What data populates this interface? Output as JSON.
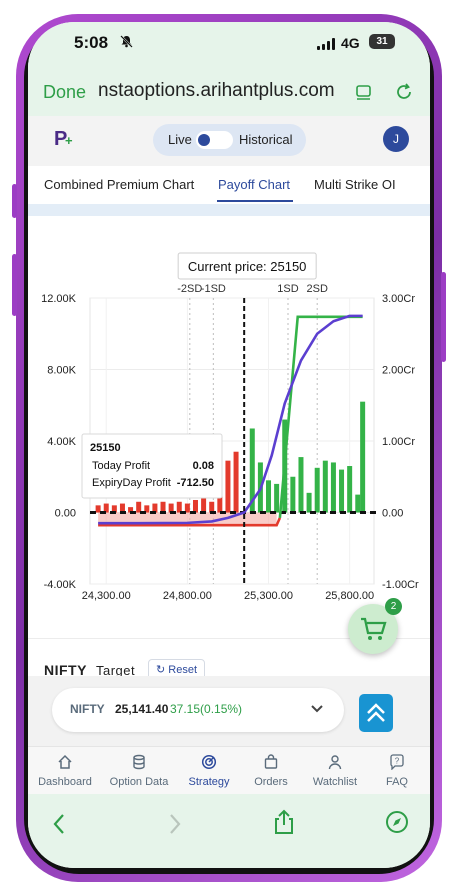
{
  "status": {
    "time": "5:08",
    "network": "4G",
    "battery": "31"
  },
  "browser": {
    "done_label": "Done",
    "url": "nstaoptions.arihantplus.com"
  },
  "app": {
    "logo_text": "P",
    "live_label": "Live",
    "historical_label": "Historical",
    "avatar_initial": "J",
    "tabs": [
      "Combined Premium Chart",
      "Payoff Chart",
      "Multi Strike OI"
    ],
    "active_tab": "Payoff Chart"
  },
  "chart_data": {
    "type": "line",
    "current_price_label": "Current price: 25150",
    "sd_labels": [
      "-2SD",
      "-1SD",
      "1SD",
      "2SD"
    ],
    "xlim": [
      24200,
      25950
    ],
    "x_ticks": [
      "24,300.00",
      "24,800.00",
      "25,300.00",
      "25,800.00"
    ],
    "x_tick_values": [
      24300,
      24800,
      25300,
      25800
    ],
    "y_left_ticks": [
      "12.00K",
      "8.00K",
      "4.00K",
      "0.00",
      "-4.00K"
    ],
    "y_left_values": [
      12000,
      8000,
      4000,
      0,
      -4000
    ],
    "y_right_ticks": [
      "3.00Cr",
      "2.00Cr",
      "1.00Cr",
      "0.00",
      "-1.00Cr"
    ],
    "ylim": [
      -4000,
      12000
    ],
    "current_price": 25150,
    "sd_values": [
      24815,
      24960,
      25420,
      25600
    ],
    "series": [
      {
        "name": "Today Profit",
        "color": "#5b3fd0",
        "x": [
          24250,
          24500,
          24800,
          24950,
          25050,
          25150,
          25250,
          25320,
          25400,
          25500,
          25600,
          25700,
          25800,
          25880
        ],
        "y": [
          -600,
          -600,
          -580,
          -500,
          -300,
          0,
          1300,
          3200,
          6100,
          8500,
          10000,
          10700,
          11000,
          11000
        ]
      },
      {
        "name": "ExpiryDay Profit",
        "color": "#34b348",
        "x": [
          24250,
          25150,
          25350,
          25370,
          25480,
          25550,
          25880
        ],
        "y": [
          -712,
          -712,
          -712,
          -300,
          10950,
          10950,
          10950
        ]
      }
    ],
    "oi_bars": {
      "call": {
        "color": "#34b348",
        "x": [
          25200,
          25250,
          25300,
          25350,
          25400,
          25450,
          25500,
          25550,
          25600,
          25650,
          25700,
          25750,
          25800,
          25850,
          25880
        ],
        "y": [
          4700,
          2800,
          1800,
          1600,
          5200,
          2000,
          3100,
          1100,
          2500,
          2900,
          2800,
          2400,
          2600,
          1000,
          6200
        ]
      },
      "put": {
        "color": "#e33a2c",
        "x": [
          24250,
          24300,
          24350,
          24400,
          24450,
          24500,
          24550,
          24600,
          24650,
          24700,
          24750,
          24800,
          24850,
          24900,
          24950,
          25000,
          25050,
          25100
        ],
        "y": [
          400,
          500,
          400,
          500,
          300,
          600,
          400,
          500,
          600,
          500,
          600,
          500,
          700,
          800,
          600,
          1500,
          2900,
          3400
        ]
      }
    },
    "tooltip": {
      "title": "25150",
      "rows": [
        {
          "label": "Today Profit",
          "value": "0.08"
        },
        {
          "label": "ExpiryDay Profit",
          "value": "-712.50"
        }
      ]
    }
  },
  "summary": {
    "symbol": "NIFTY",
    "target_label": "Target",
    "reset_label": "Reset",
    "cart_count": "2"
  },
  "quote": {
    "symbol": "NIFTY",
    "price": "25,141.40",
    "change": "37.15(0.15%)"
  },
  "nav": [
    {
      "label": "Dashboard",
      "icon": "home-icon"
    },
    {
      "label": "Option Data",
      "icon": "database-icon"
    },
    {
      "label": "Strategy",
      "icon": "strategy-icon"
    },
    {
      "label": "Orders",
      "icon": "bag-icon"
    },
    {
      "label": "Watchlist",
      "icon": "user-icon"
    },
    {
      "label": "FAQ",
      "icon": "help-bubble-icon"
    }
  ],
  "colors": {
    "brand_green": "#2e9e48",
    "brand_blue": "#2d4a9c",
    "phone_purple": "#9c3dc4"
  }
}
